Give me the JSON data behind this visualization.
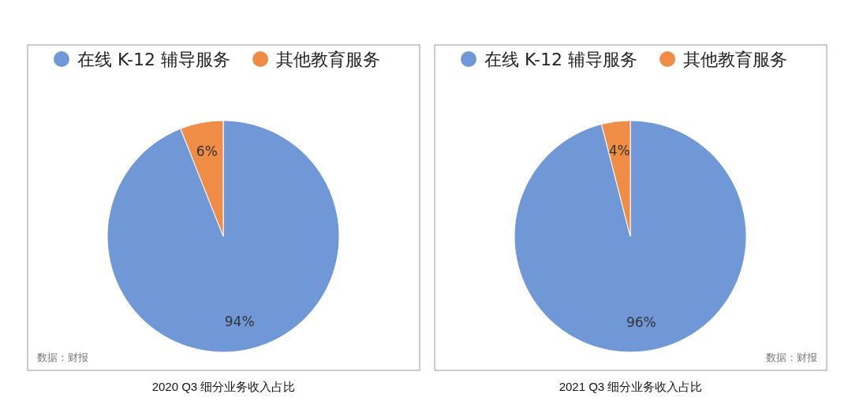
{
  "chart_data": [
    {
      "type": "pie",
      "title": "2020 Q3 细分业务收入占比",
      "categories": [
        "在线 K-12 辅导服务",
        "其他教育服务"
      ],
      "values": [
        94,
        6
      ],
      "colors": [
        "#7097d6",
        "#ef8c45"
      ],
      "value_labels": [
        "94%",
        "6%"
      ],
      "legend": "top",
      "annotations": [
        "数据：财报"
      ]
    },
    {
      "type": "pie",
      "title": "2021 Q3 细分业务收入占比",
      "categories": [
        "在线 K-12 辅导服务",
        "其他教育服务"
      ],
      "values": [
        96,
        4
      ],
      "colors": [
        "#7097d6",
        "#ef8c45"
      ],
      "value_labels": [
        "96%",
        "4%"
      ],
      "legend": "top",
      "annotations": [
        "数据：财报"
      ]
    }
  ]
}
